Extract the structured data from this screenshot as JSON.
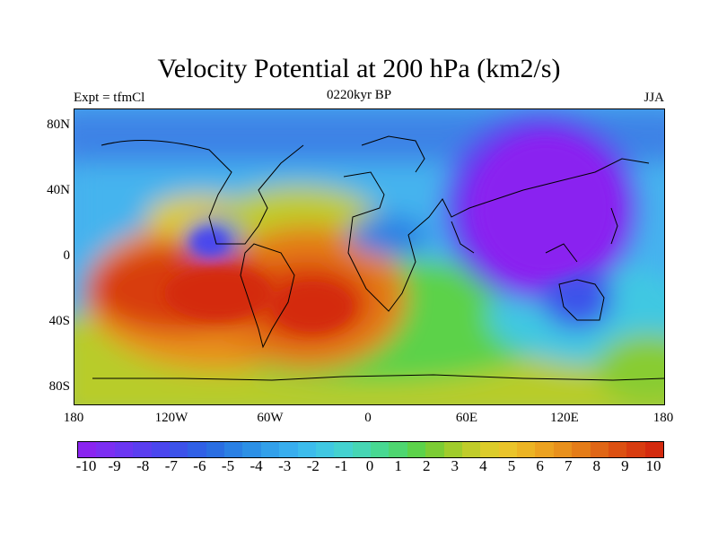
{
  "title": "Velocity Potential at 200 hPa (km2/s)",
  "left_label": "Expt = tfmCl",
  "center_label": "0220kyr BP",
  "right_label": "JJA",
  "y_axis_ticks": [
    "80N",
    "40N",
    "0",
    "40S",
    "80S"
  ],
  "x_axis_ticks": [
    "180",
    "120W",
    "60W",
    "0",
    "60E",
    "120E",
    "180"
  ],
  "colorbar": {
    "ticks": [
      "-10",
      "-9",
      "-8",
      "-7",
      "-6",
      "-5",
      "-4",
      "-3",
      "-2",
      "-1",
      "0",
      "1",
      "2",
      "3",
      "4",
      "5",
      "6",
      "7",
      "8",
      "9",
      "10"
    ],
    "colors": [
      "#8a24f0",
      "#7c2ef2",
      "#6b36f2",
      "#5a3ef0",
      "#4a46ee",
      "#3c52ea",
      "#3060e6",
      "#2a6ee2",
      "#2a80e4",
      "#2c90e6",
      "#32a0ea",
      "#38aeee",
      "#3cbcec",
      "#40c8e2",
      "#44d2d0",
      "#46d6b4",
      "#48d892",
      "#4ed670",
      "#5cd24a",
      "#7ccc34",
      "#a0cc2c",
      "#c0cc2a",
      "#dccc2a",
      "#eac42a",
      "#ecb424",
      "#eca220",
      "#e8901c",
      "#e47c18",
      "#e06616",
      "#dc5012",
      "#d83c10",
      "#d42a0e"
    ]
  },
  "chart_data": {
    "type": "heatmap",
    "title": "Velocity Potential at 200 hPa (km2/s)",
    "variable": "Velocity Potential at 200 hPa",
    "units": "km2/s",
    "experiment": "tfmCl",
    "time": "0220kyr BP",
    "season": "JJA",
    "x_range": [
      -180,
      180
    ],
    "y_range": [
      -90,
      90
    ],
    "value_range": [
      -10,
      10
    ],
    "x_ticks": [
      "180",
      "120W",
      "60W",
      "0",
      "60E",
      "120E",
      "180"
    ],
    "y_ticks": [
      "80N",
      "40N",
      "0",
      "40S",
      "80S"
    ],
    "features": [
      {
        "lon": 120,
        "lat": 20,
        "value": -10,
        "desc": "strong minimum over East Asia / western Pacific"
      },
      {
        "lon": -100,
        "lat": 10,
        "value": -7,
        "desc": "minimum over Central America"
      },
      {
        "lon": 10,
        "lat": 10,
        "value": -6,
        "desc": "minimum over West Africa"
      },
      {
        "lon": -140,
        "lat": -20,
        "value": 9,
        "desc": "maximum over South Pacific"
      },
      {
        "lon": -30,
        "lat": -25,
        "value": 9,
        "desc": "maximum over South Atlantic"
      }
    ]
  }
}
